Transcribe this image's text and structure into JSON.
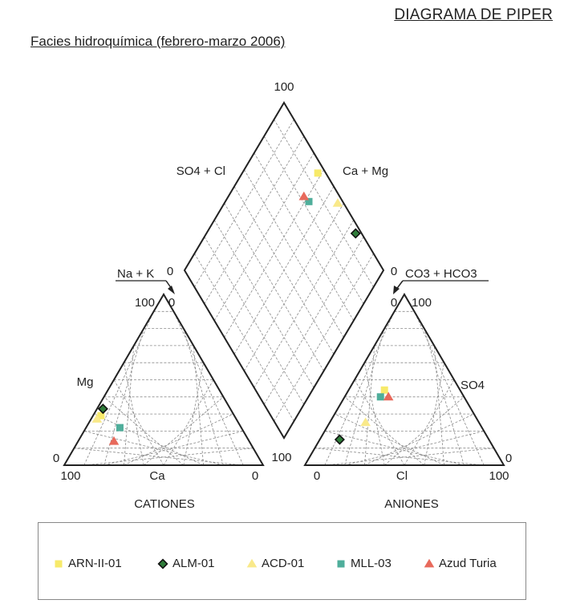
{
  "header": {
    "title": "DIAGRAMA DE PIPER",
    "subtitle": "Facies hidroquímica (febrero-marzo 2006)"
  },
  "colors": {
    "grid": "#8a8a8a",
    "frame": "#222222",
    "ARN-II-01": "#f7ea6a",
    "ALM-01": "#2f7d3a",
    "ACD-01": "#f9e98a",
    "MLL-03": "#4fae9b",
    "Azud Turia": "#e86a5c"
  },
  "labels": {
    "diamond_top": "100",
    "diamond_left_name": "SO4 + Cl",
    "diamond_right_name": "Ca + Mg",
    "diamond_left_zero": "0",
    "diamond_right_zero": "0",
    "diamond_bottom": "100",
    "nak_label": "Na + K",
    "co3_label": "CO3 + HCO3",
    "cat_top_left": "100",
    "cat_top_right": "0",
    "cat_mg": "Mg",
    "cat_left_zero": "0",
    "cat_bottom_left": "100",
    "cat_ca": "Ca",
    "cat_bottom_right": "0",
    "cat_title": "CATIONES",
    "an_top_left": "0",
    "an_top_right": "100",
    "an_so4": "SO4",
    "an_right_zero": "0",
    "an_bottom_left": "0",
    "an_cl": "Cl",
    "an_bottom_right": "100",
    "an_title": "ANIONES"
  },
  "chart_data": {
    "type": "scatter",
    "subtype": "piper",
    "title": "DIAGRAMA DE PIPER",
    "subtitle": "Facies hidroquímica (febrero-marzo 2006)",
    "grid": true,
    "legend_position": "bottom",
    "legend": [
      "ARN-II-01",
      "ALM-01",
      "ACD-01",
      "MLL-03",
      "Azud Turia"
    ],
    "series": [
      {
        "name": "ARN-II-01",
        "marker": "square",
        "color": "#f7ea6a",
        "cations": {
          "Ca": 67,
          "Mg": 29,
          "NaK": 4
        },
        "anions": {
          "Cl": 18,
          "SO4": 44,
          "CO3HCO3": 38
        }
      },
      {
        "name": "ALM-01",
        "marker": "diamond",
        "color": "#2f7d3a",
        "cations": {
          "Ca": 64,
          "Mg": 33,
          "NaK": 3
        },
        "anions": {
          "Cl": 10,
          "SO4": 15,
          "CO3HCO3": 75
        }
      },
      {
        "name": "ACD-01",
        "marker": "triangle",
        "color": "#f9e98a",
        "cations": {
          "Ca": 70,
          "Mg": 27,
          "NaK": 3
        },
        "anions": {
          "Cl": 18,
          "SO4": 25,
          "CO3HCO3": 57
        }
      },
      {
        "name": "MLL-03",
        "marker": "square",
        "color": "#4fae9b",
        "cations": {
          "Ca": 61,
          "Mg": 22,
          "NaK": 17
        },
        "anions": {
          "Cl": 18,
          "SO4": 40,
          "CO3HCO3": 42
        }
      },
      {
        "name": "Azud Turia",
        "marker": "triangle",
        "color": "#e86a5c",
        "cations": {
          "Ca": 68,
          "Mg": 14,
          "NaK": 18
        },
        "anions": {
          "Cl": 22,
          "SO4": 40,
          "CO3HCO3": 38
        }
      }
    ]
  }
}
